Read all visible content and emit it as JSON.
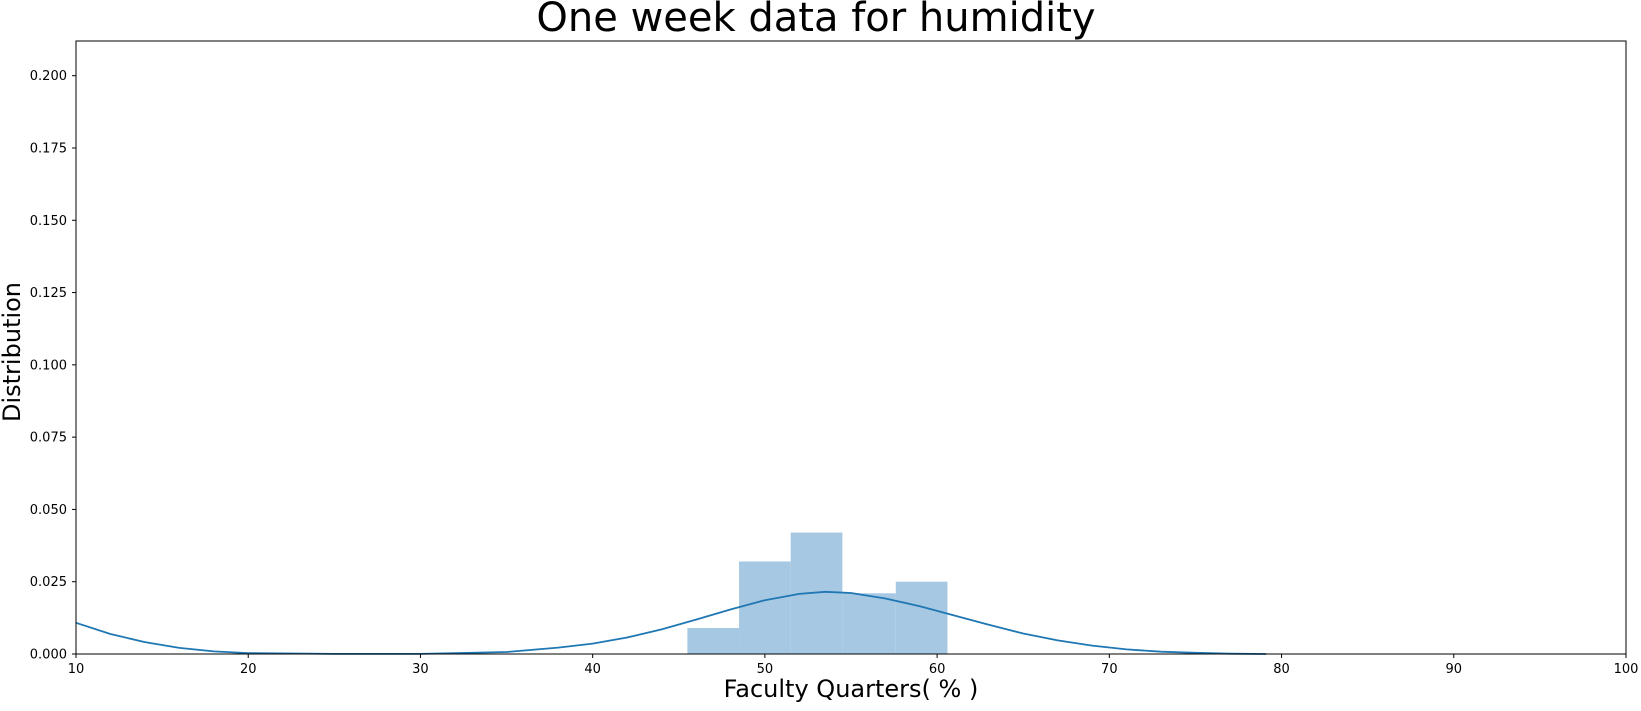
{
  "chart_data": {
    "type": "bar",
    "title": "One week data for humidity",
    "xlabel": "Faculty Quarters( % )",
    "ylabel": "Distribution",
    "xlim": [
      10,
      100
    ],
    "ylim": [
      0,
      0.212
    ],
    "xticks": [
      10,
      20,
      30,
      40,
      50,
      60,
      70,
      80,
      90,
      100
    ],
    "yticks": [
      0.0,
      0.025,
      0.05,
      0.075,
      0.1,
      0.125,
      0.15,
      0.175,
      0.2
    ],
    "ytick_labels": [
      "0.000",
      "0.025",
      "0.050",
      "0.075",
      "0.100",
      "0.125",
      "0.150",
      "0.175",
      "0.200"
    ],
    "grid": false,
    "histogram": {
      "color": "#a6c8e3",
      "bins": [
        {
          "x0": 45.5,
          "x1": 48.5,
          "density": 0.009
        },
        {
          "x0": 48.5,
          "x1": 51.5,
          "density": 0.032
        },
        {
          "x0": 51.5,
          "x1": 54.5,
          "density": 0.042
        },
        {
          "x0": 54.5,
          "x1": 57.6,
          "density": 0.021
        },
        {
          "x0": 57.6,
          "x1": 60.6,
          "density": 0.025
        }
      ]
    },
    "kde": {
      "color": "#1f77b4",
      "x": [
        10,
        12,
        14,
        16,
        18,
        20,
        25,
        30,
        35,
        38,
        40,
        42,
        44,
        46,
        48,
        50,
        52,
        53.5,
        55,
        57,
        59,
        61,
        63,
        65,
        67,
        69,
        71,
        73,
        75,
        77,
        79.1
      ],
      "y": [
        0.0108,
        0.0069,
        0.0041,
        0.0021,
        0.0009,
        0.0003,
        3e-05,
        5e-05,
        0.0007,
        0.0022,
        0.0036,
        0.0057,
        0.0085,
        0.0119,
        0.0154,
        0.0186,
        0.0208,
        0.0215,
        0.0211,
        0.0192,
        0.0165,
        0.0133,
        0.0101,
        0.0071,
        0.0047,
        0.0029,
        0.0016,
        0.0008,
        0.0004,
        0.0001,
        0.0
      ]
    }
  }
}
